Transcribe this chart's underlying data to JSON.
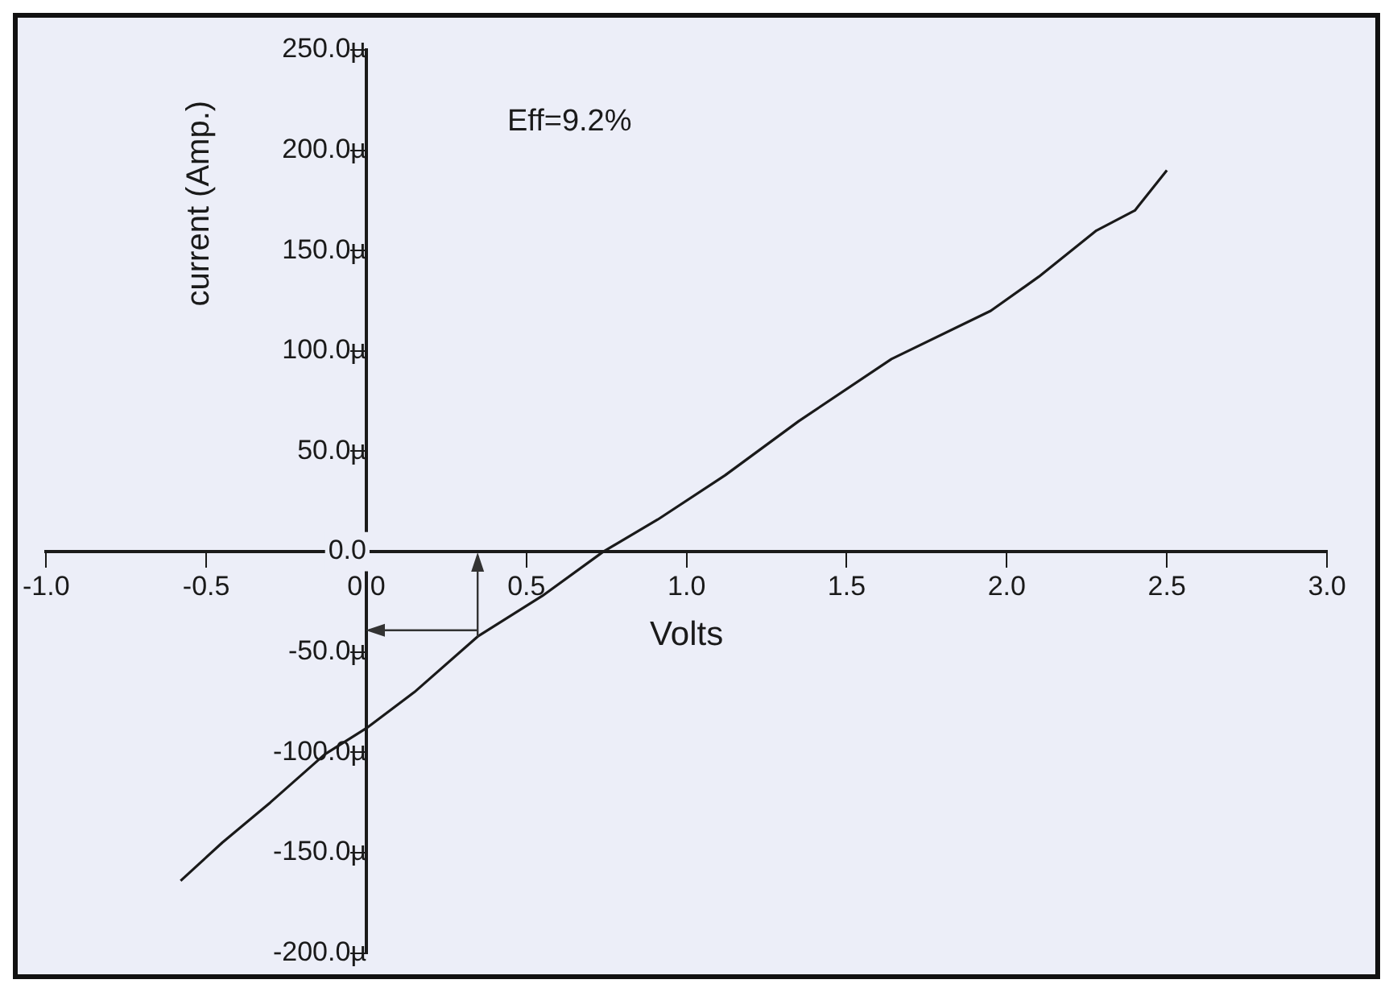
{
  "chart_data": {
    "type": "line",
    "xlabel": "Volts",
    "ylabel": "current (Amp.)",
    "annotations": [
      "Eff=9.2%"
    ],
    "x": [
      -0.58,
      -0.45,
      -0.3,
      -0.13,
      0,
      0.15,
      0.35,
      0.55,
      0.74,
      0.91,
      1.12,
      1.35,
      1.64,
      1.95,
      2.1,
      2.28,
      2.4,
      2.5
    ],
    "series": [
      {
        "color": "#1a1a1a",
        "values": [
          -164,
          -145,
          -125,
          -101,
          -88,
          -70,
          -42,
          -22,
          0,
          16,
          38,
          65,
          96,
          120,
          137,
          160,
          170,
          190
        ]
      }
    ],
    "xlim": [
      -1,
      3
    ],
    "xticks": [
      {
        "value": -1,
        "label": "-1.0"
      },
      {
        "value": -0.5,
        "label": "-0.5"
      },
      {
        "value": 0,
        "label": "0.0"
      },
      {
        "value": 0.5,
        "label": "0.5"
      },
      {
        "value": 1,
        "label": "1.0"
      },
      {
        "value": 1.5,
        "label": "1.5"
      },
      {
        "value": 2,
        "label": "2.0"
      },
      {
        "value": 2.5,
        "label": "2.5"
      },
      {
        "value": 3,
        "label": "3.0"
      }
    ],
    "ylim": [
      -200,
      250
    ],
    "yticks": [
      {
        "value": -200,
        "label": "-200.0µ"
      },
      {
        "value": -150,
        "label": "-150.0µ"
      },
      {
        "value": -100,
        "label": "-100.0µ"
      },
      {
        "value": -50,
        "label": "-50.0µ"
      },
      {
        "value": 0,
        "label": "0.0"
      },
      {
        "value": 50,
        "label": "50.0µ"
      },
      {
        "value": 100,
        "label": "100.0µ"
      },
      {
        "value": 150,
        "label": "150.0µ"
      },
      {
        "value": 200,
        "label": "200.0µ"
      },
      {
        "value": 250,
        "label": "250.0µ"
      }
    ],
    "grid": false,
    "legend": false,
    "marker": "none",
    "line_style": "solid"
  }
}
